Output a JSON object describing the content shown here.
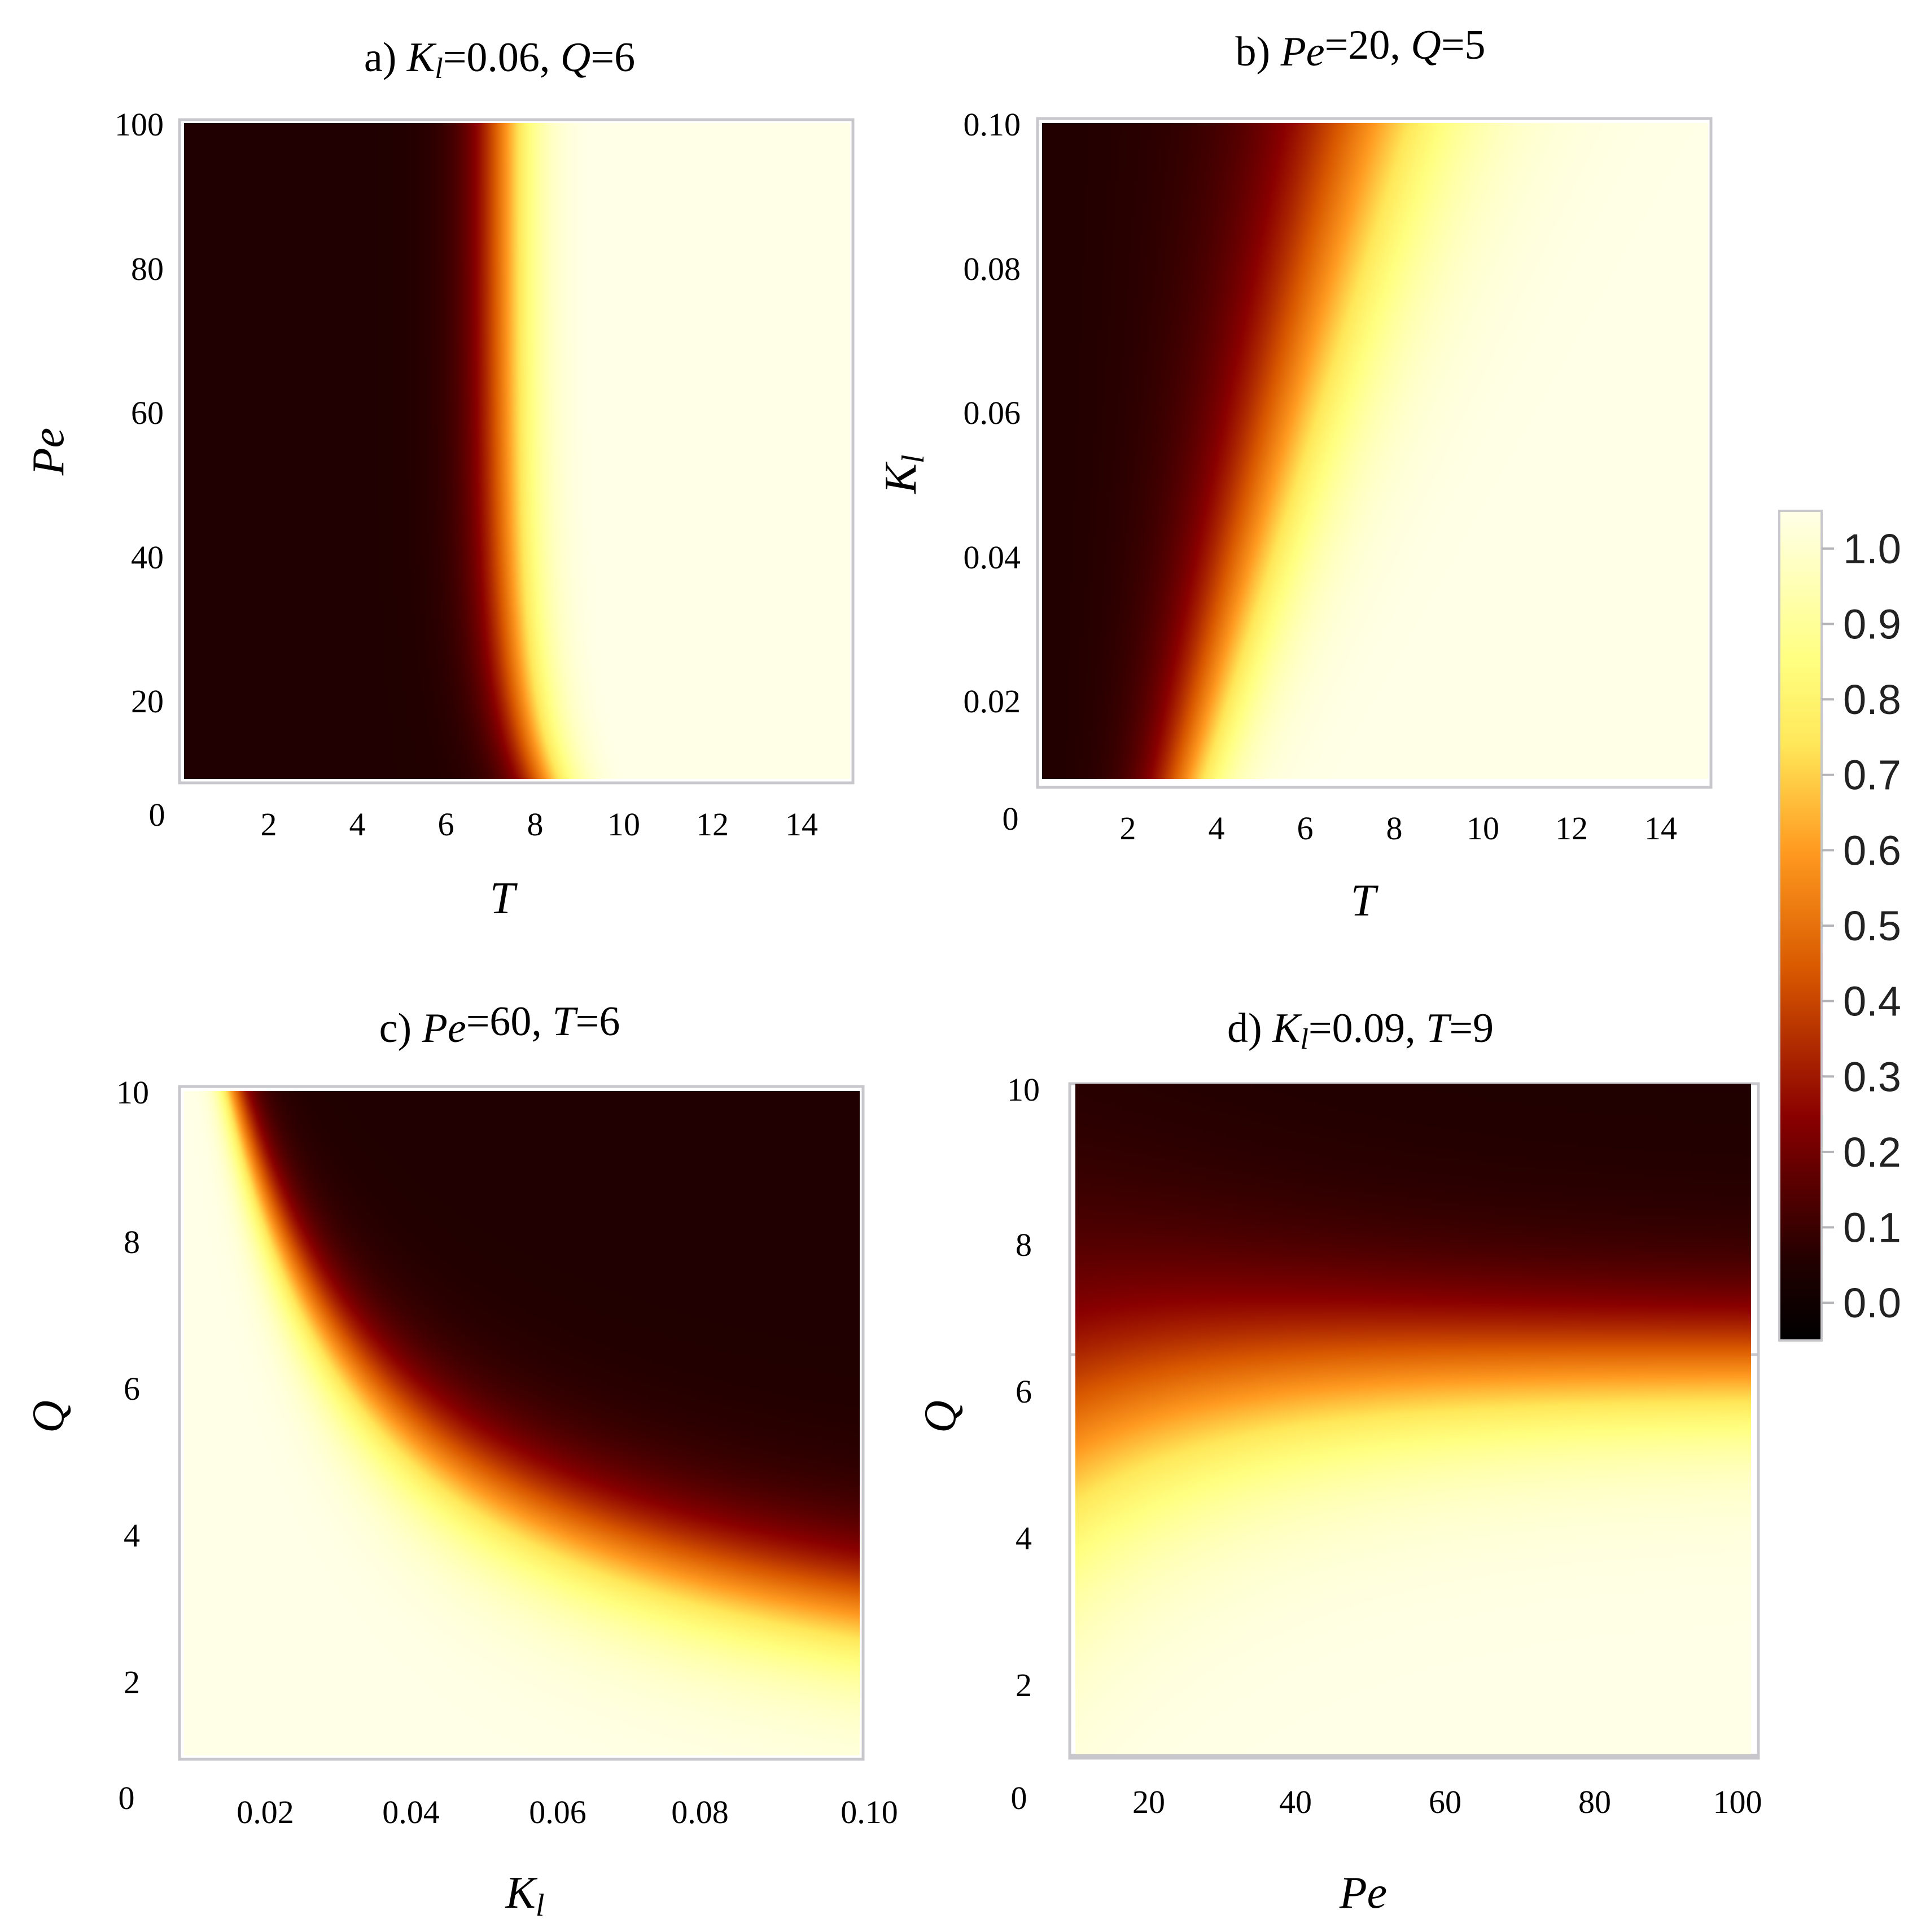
{
  "colorbar": {
    "ticks": [
      "0.0",
      "0.1",
      "0.2",
      "0.3",
      "0.4",
      "0.5",
      "0.6",
      "0.7",
      "0.8",
      "0.9",
      "1.0"
    ],
    "range": [
      -0.05,
      1.05
    ],
    "colors": [
      "#000000",
      "#1f0000",
      "#8a0000",
      "#d95a00",
      "#ff9a20",
      "#ffe85a",
      "#ffff80",
      "#ffffe8"
    ]
  },
  "chart_data": [
    {
      "type": "heatmap",
      "panel": "a",
      "title_parts": [
        "a) ",
        "K",
        "l",
        "=0.06, ",
        "Q",
        "=6"
      ],
      "xlabel": "T",
      "ylabel": "Pe",
      "xlim": [
        0,
        15
      ],
      "ylim": [
        10,
        100
      ],
      "x_ticks": [
        "2",
        "4",
        "6",
        "8",
        "10",
        "12",
        "14"
      ],
      "y_ticks": [
        "20",
        "40",
        "60",
        "80",
        "100"
      ],
      "origin_label": "0"
    },
    {
      "type": "heatmap",
      "panel": "b",
      "title_parts": [
        "b) ",
        "Pe",
        "",
        "=20, ",
        "Q",
        "=5"
      ],
      "xlabel": "T",
      "ylabel": "K",
      "ylabel_sub": "l",
      "xlim": [
        0,
        15
      ],
      "ylim": [
        0.01,
        0.1
      ],
      "x_ticks": [
        "2",
        "4",
        "6",
        "8",
        "10",
        "12",
        "14"
      ],
      "y_ticks": [
        "0.02",
        "0.04",
        "0.06",
        "0.08",
        "0.10"
      ],
      "origin_label": "0"
    },
    {
      "type": "heatmap",
      "panel": "c",
      "title_parts": [
        "c) ",
        "Pe",
        "",
        "=60, ",
        "T",
        "=6"
      ],
      "xlabel": "K",
      "xlabel_sub": "l",
      "ylabel": "Q",
      "xlim": [
        0.01,
        0.1
      ],
      "ylim": [
        1,
        10
      ],
      "x_ticks": [
        "0.02",
        "0.04",
        "0.06",
        "0.08",
        "0.10"
      ],
      "y_ticks": [
        "2",
        "4",
        "6",
        "8",
        "10"
      ],
      "origin_label": "0"
    },
    {
      "type": "heatmap",
      "panel": "d",
      "title_parts": [
        "d) ",
        "K",
        "l",
        "=0.09, ",
        "T",
        "=9"
      ],
      "xlabel": "Pe",
      "ylabel": "Q",
      "xlim": [
        10,
        100
      ],
      "ylim": [
        1,
        10
      ],
      "x_ticks": [
        "20",
        "40",
        "60",
        "80",
        "100"
      ],
      "y_ticks": [
        "2",
        "4",
        "6",
        "8",
        "10"
      ],
      "origin_label": "0"
    }
  ]
}
